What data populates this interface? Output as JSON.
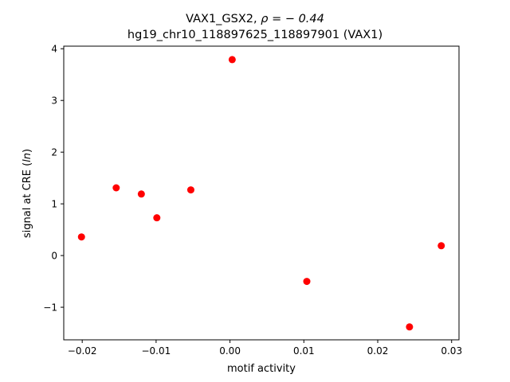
{
  "chart_data": {
    "type": "scatter",
    "title_line1_prefix": "VAX1_GSX2, ",
    "title_line1_rho": "ρ = − 0.44",
    "title_line2": "hg19_chr10_118897625_118897901 (VAX1)",
    "xlabel": "motif activity",
    "ylabel_prefix": "signal at CRE (",
    "ylabel_italic": "ln",
    "ylabel_suffix": ")",
    "xlim": [
      -0.0225,
      0.031
    ],
    "ylim": [
      -1.63,
      4.05
    ],
    "xticks": [
      {
        "value": -0.02,
        "label": "−0.02"
      },
      {
        "value": -0.01,
        "label": "−0.01"
      },
      {
        "value": 0.0,
        "label": "0.00"
      },
      {
        "value": 0.01,
        "label": "0.01"
      },
      {
        "value": 0.02,
        "label": "0.02"
      },
      {
        "value": 0.03,
        "label": "0.03"
      }
    ],
    "yticks": [
      {
        "value": -1,
        "label": "−1"
      },
      {
        "value": 0,
        "label": "0"
      },
      {
        "value": 1,
        "label": "1"
      },
      {
        "value": 2,
        "label": "2"
      },
      {
        "value": 3,
        "label": "3"
      },
      {
        "value": 4,
        "label": "4"
      }
    ],
    "grid": false,
    "marker_color": "#ff0000",
    "points": [
      {
        "x": -0.0201,
        "y": 0.36
      },
      {
        "x": -0.0154,
        "y": 1.31
      },
      {
        "x": -0.012,
        "y": 1.19
      },
      {
        "x": -0.0099,
        "y": 0.73
      },
      {
        "x": -0.0053,
        "y": 1.27
      },
      {
        "x": 0.0003,
        "y": 3.79
      },
      {
        "x": 0.0104,
        "y": -0.5
      },
      {
        "x": 0.0243,
        "y": -1.38
      },
      {
        "x": 0.0286,
        "y": 0.19
      }
    ]
  }
}
